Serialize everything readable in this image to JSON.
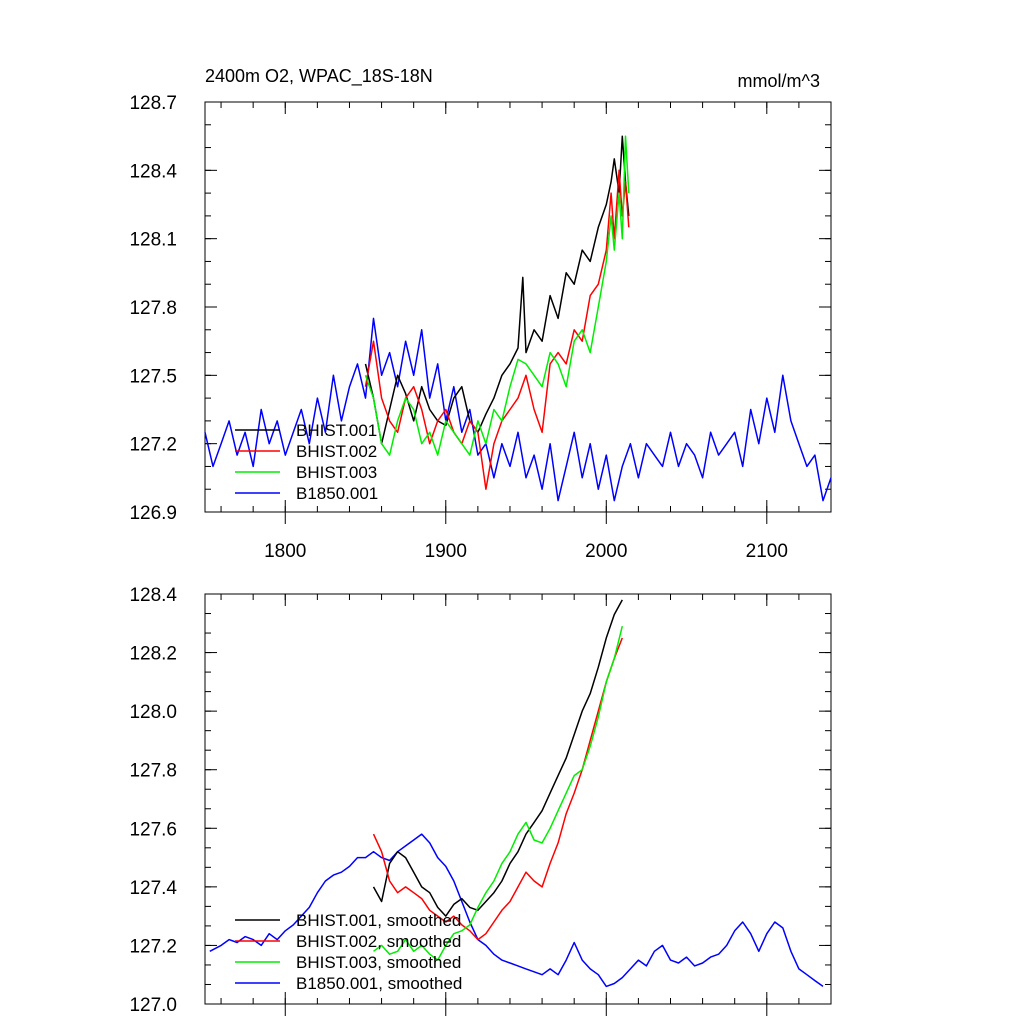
{
  "chart_data": [
    {
      "type": "line",
      "title": "2400m O2, WPAC_18S-18N",
      "units": "mmol/m^3",
      "xlabel": "",
      "ylabel": "",
      "xlim": [
        1750,
        2140
      ],
      "ylim": [
        126.9,
        128.7
      ],
      "xticks": [
        1800,
        1900,
        2000,
        2100
      ],
      "xtick_labels": [
        "1800",
        "1900",
        "2000",
        "2100"
      ],
      "yticks": [
        126.9,
        127.2,
        127.5,
        127.8,
        128.1,
        128.4,
        128.7
      ],
      "ytick_labels": [
        "126.9",
        "127.2",
        "127.5",
        "127.8",
        "128.1",
        "128.4",
        "128.7"
      ],
      "grid": false,
      "legend_position": "bottom-left",
      "series": [
        {
          "name": "BHIST.001",
          "color": "#000000",
          "x": [
            1850,
            1855,
            1860,
            1865,
            1870,
            1875,
            1880,
            1885,
            1890,
            1895,
            1900,
            1905,
            1910,
            1915,
            1920,
            1925,
            1930,
            1935,
            1940,
            1945,
            1948,
            1950,
            1955,
            1960,
            1965,
            1970,
            1975,
            1980,
            1985,
            1990,
            1995,
            2000,
            2003,
            2005,
            2008,
            2010,
            2012,
            2014
          ],
          "y": [
            127.55,
            127.4,
            127.2,
            127.35,
            127.5,
            127.42,
            127.3,
            127.45,
            127.35,
            127.3,
            127.28,
            127.4,
            127.45,
            127.3,
            127.25,
            127.33,
            127.4,
            127.5,
            127.55,
            127.62,
            127.93,
            127.6,
            127.7,
            127.65,
            127.85,
            127.75,
            127.95,
            127.9,
            128.05,
            128.0,
            128.15,
            128.25,
            128.35,
            128.45,
            128.3,
            128.55,
            128.35,
            128.2
          ]
        },
        {
          "name": "BHIST.002",
          "color": "#ff0000",
          "x": [
            1850,
            1855,
            1860,
            1865,
            1870,
            1875,
            1880,
            1885,
            1890,
            1895,
            1900,
            1905,
            1910,
            1915,
            1920,
            1925,
            1930,
            1935,
            1940,
            1945,
            1950,
            1955,
            1960,
            1965,
            1970,
            1975,
            1980,
            1985,
            1990,
            1995,
            2000,
            2003,
            2005,
            2008,
            2010,
            2012,
            2014
          ],
          "y": [
            127.45,
            127.65,
            127.4,
            127.3,
            127.25,
            127.4,
            127.45,
            127.35,
            127.2,
            127.3,
            127.35,
            127.25,
            127.2,
            127.3,
            127.25,
            127.0,
            127.2,
            127.3,
            127.35,
            127.4,
            127.5,
            127.35,
            127.25,
            127.55,
            127.6,
            127.55,
            127.7,
            127.65,
            127.85,
            127.9,
            128.05,
            128.3,
            128.1,
            128.4,
            128.2,
            128.35,
            128.15
          ]
        },
        {
          "name": "BHIST.003",
          "color": "#00ee00",
          "x": [
            1850,
            1855,
            1860,
            1865,
            1870,
            1875,
            1880,
            1885,
            1890,
            1895,
            1900,
            1905,
            1910,
            1915,
            1920,
            1925,
            1930,
            1935,
            1940,
            1945,
            1950,
            1955,
            1960,
            1965,
            1970,
            1975,
            1980,
            1985,
            1990,
            1995,
            2000,
            2003,
            2005,
            2008,
            2010,
            2012,
            2014
          ],
          "y": [
            127.5,
            127.4,
            127.2,
            127.15,
            127.3,
            127.4,
            127.35,
            127.2,
            127.25,
            127.15,
            127.3,
            127.25,
            127.2,
            127.15,
            127.3,
            127.2,
            127.35,
            127.3,
            127.45,
            127.57,
            127.55,
            127.5,
            127.45,
            127.6,
            127.55,
            127.45,
            127.65,
            127.7,
            127.6,
            127.8,
            128.0,
            128.2,
            128.05,
            128.3,
            128.1,
            128.55,
            128.3
          ]
        },
        {
          "name": "B1850.001",
          "color": "#0000ff",
          "x": [
            1750,
            1755,
            1760,
            1765,
            1770,
            1775,
            1780,
            1785,
            1790,
            1795,
            1800,
            1805,
            1810,
            1815,
            1820,
            1825,
            1830,
            1835,
            1840,
            1845,
            1850,
            1855,
            1860,
            1865,
            1870,
            1875,
            1880,
            1885,
            1890,
            1895,
            1900,
            1905,
            1910,
            1915,
            1920,
            1925,
            1930,
            1935,
            1940,
            1945,
            1950,
            1955,
            1960,
            1965,
            1970,
            1975,
            1980,
            1985,
            1990,
            1995,
            2000,
            2005,
            2010,
            2015,
            2020,
            2025,
            2030,
            2035,
            2040,
            2045,
            2050,
            2055,
            2060,
            2065,
            2070,
            2075,
            2080,
            2085,
            2090,
            2095,
            2100,
            2105,
            2110,
            2115,
            2120,
            2125,
            2130,
            2135,
            2140
          ],
          "y": [
            127.25,
            127.1,
            127.2,
            127.3,
            127.15,
            127.25,
            127.1,
            127.35,
            127.2,
            127.3,
            127.15,
            127.25,
            127.35,
            127.2,
            127.4,
            127.25,
            127.5,
            127.3,
            127.45,
            127.55,
            127.4,
            127.75,
            127.5,
            127.6,
            127.45,
            127.65,
            127.5,
            127.7,
            127.4,
            127.55,
            127.3,
            127.45,
            127.25,
            127.35,
            127.15,
            127.2,
            127.05,
            127.2,
            127.1,
            127.25,
            127.05,
            127.15,
            127.0,
            127.2,
            126.95,
            127.1,
            127.25,
            127.05,
            127.2,
            127.0,
            127.15,
            126.95,
            127.1,
            127.2,
            127.05,
            127.2,
            127.15,
            127.1,
            127.25,
            127.1,
            127.2,
            127.15,
            127.05,
            127.25,
            127.15,
            127.2,
            127.25,
            127.1,
            127.35,
            127.2,
            127.4,
            127.25,
            127.5,
            127.3,
            127.2,
            127.1,
            127.15,
            126.95,
            127.05
          ]
        }
      ]
    },
    {
      "type": "line",
      "title": "",
      "xlabel": "",
      "ylabel": "",
      "xlim": [
        1750,
        2140
      ],
      "ylim": [
        127.0,
        128.4
      ],
      "xticks": [
        1800,
        1900,
        2000,
        2100
      ],
      "xtick_labels": [],
      "yticks": [
        127.0,
        127.2,
        127.4,
        127.6,
        127.8,
        128.0,
        128.2,
        128.4
      ],
      "ytick_labels": [
        "127.0",
        "127.2",
        "127.4",
        "127.6",
        "127.8",
        "128.0",
        "128.2",
        "128.4"
      ],
      "grid": false,
      "legend_position": "bottom-left",
      "series": [
        {
          "name": "BHIST.001, smoothed",
          "color": "#000000",
          "x": [
            1855,
            1860,
            1865,
            1870,
            1875,
            1880,
            1885,
            1890,
            1895,
            1900,
            1905,
            1910,
            1915,
            1920,
            1925,
            1930,
            1935,
            1940,
            1945,
            1950,
            1955,
            1960,
            1965,
            1970,
            1975,
            1980,
            1985,
            1990,
            1995,
            2000,
            2005,
            2010
          ],
          "y": [
            127.4,
            127.35,
            127.48,
            127.52,
            127.5,
            127.45,
            127.4,
            127.38,
            127.33,
            127.3,
            127.34,
            127.36,
            127.33,
            127.32,
            127.35,
            127.38,
            127.42,
            127.48,
            127.52,
            127.58,
            127.62,
            127.66,
            127.72,
            127.78,
            127.84,
            127.92,
            128.0,
            128.06,
            128.15,
            128.25,
            128.33,
            128.38
          ]
        },
        {
          "name": "BHIST.002, smoothed",
          "color": "#ff0000",
          "x": [
            1855,
            1860,
            1865,
            1870,
            1875,
            1880,
            1885,
            1890,
            1895,
            1900,
            1905,
            1910,
            1915,
            1920,
            1925,
            1930,
            1935,
            1940,
            1945,
            1950,
            1955,
            1960,
            1965,
            1970,
            1975,
            1980,
            1985,
            1990,
            1995,
            2000,
            2005,
            2010
          ],
          "y": [
            127.58,
            127.52,
            127.42,
            127.38,
            127.4,
            127.38,
            127.36,
            127.32,
            127.3,
            127.28,
            127.3,
            127.27,
            127.25,
            127.22,
            127.24,
            127.28,
            127.32,
            127.35,
            127.4,
            127.45,
            127.42,
            127.4,
            127.48,
            127.55,
            127.65,
            127.72,
            127.8,
            127.9,
            128.0,
            128.1,
            128.18,
            128.25
          ]
        },
        {
          "name": "BHIST.003, smoothed",
          "color": "#00ee00",
          "x": [
            1855,
            1860,
            1865,
            1870,
            1875,
            1880,
            1885,
            1890,
            1895,
            1900,
            1905,
            1910,
            1915,
            1920,
            1925,
            1930,
            1935,
            1940,
            1945,
            1950,
            1955,
            1960,
            1965,
            1970,
            1975,
            1980,
            1985,
            1990,
            1995,
            2000,
            2005,
            2010
          ],
          "y": [
            127.18,
            127.2,
            127.17,
            127.18,
            127.22,
            127.18,
            127.2,
            127.17,
            127.15,
            127.2,
            127.24,
            127.25,
            127.27,
            127.33,
            127.38,
            127.42,
            127.48,
            127.52,
            127.58,
            127.62,
            127.56,
            127.55,
            127.6,
            127.66,
            127.72,
            127.78,
            127.8,
            127.88,
            127.98,
            128.1,
            128.18,
            128.29
          ]
        },
        {
          "name": "B1850.001, smoothed",
          "color": "#0000ff",
          "x": [
            1753,
            1760,
            1765,
            1770,
            1775,
            1780,
            1785,
            1790,
            1795,
            1800,
            1805,
            1810,
            1815,
            1820,
            1825,
            1830,
            1835,
            1840,
            1845,
            1850,
            1855,
            1860,
            1865,
            1870,
            1875,
            1880,
            1885,
            1890,
            1895,
            1900,
            1905,
            1910,
            1915,
            1920,
            1925,
            1930,
            1935,
            1940,
            1945,
            1950,
            1955,
            1960,
            1965,
            1970,
            1975,
            1980,
            1985,
            1990,
            1995,
            2000,
            2005,
            2010,
            2015,
            2020,
            2025,
            2030,
            2035,
            2040,
            2045,
            2050,
            2055,
            2060,
            2065,
            2070,
            2075,
            2080,
            2085,
            2090,
            2095,
            2100,
            2105,
            2110,
            2115,
            2120,
            2125,
            2130,
            2135
          ],
          "y": [
            127.18,
            127.2,
            127.22,
            127.21,
            127.23,
            127.22,
            127.2,
            127.24,
            127.22,
            127.25,
            127.27,
            127.3,
            127.33,
            127.38,
            127.42,
            127.44,
            127.45,
            127.47,
            127.5,
            127.5,
            127.52,
            127.5,
            127.49,
            127.52,
            127.54,
            127.56,
            127.58,
            127.55,
            127.5,
            127.47,
            127.42,
            127.35,
            127.28,
            127.22,
            127.2,
            127.17,
            127.15,
            127.14,
            127.13,
            127.12,
            127.11,
            127.1,
            127.12,
            127.1,
            127.15,
            127.21,
            127.15,
            127.12,
            127.1,
            127.06,
            127.07,
            127.09,
            127.12,
            127.15,
            127.13,
            127.18,
            127.2,
            127.15,
            127.14,
            127.16,
            127.13,
            127.14,
            127.16,
            127.17,
            127.2,
            127.25,
            127.28,
            127.24,
            127.18,
            127.24,
            127.28,
            127.26,
            127.18,
            127.12,
            127.1,
            127.08,
            127.06
          ]
        }
      ]
    }
  ]
}
